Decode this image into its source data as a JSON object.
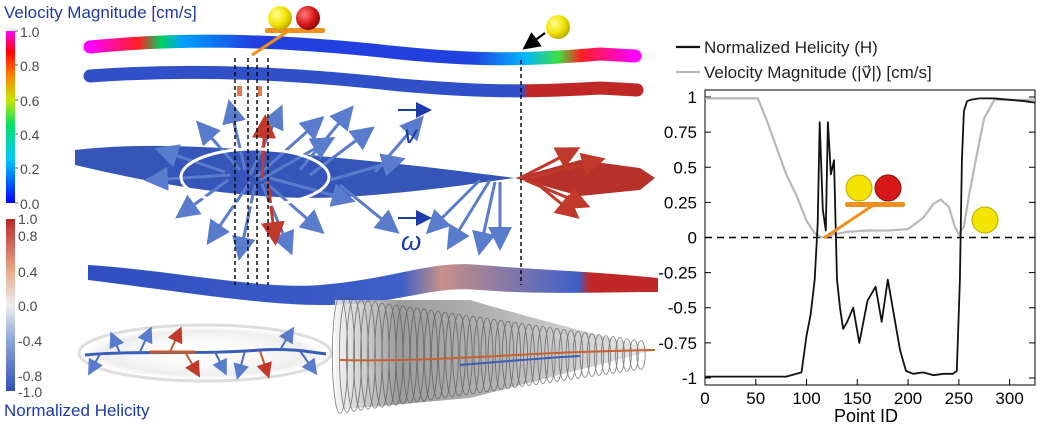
{
  "velocity_colorbar": {
    "title": "Velocity Magnitude [cm/s]",
    "ticks": [
      "1.0",
      "0.8",
      "0.6",
      "0.4",
      "0.2",
      "0.0"
    ]
  },
  "helicity_colorbar": {
    "title": "Normalized Helicity",
    "ticks": [
      "1.0",
      "0.8",
      "0.4",
      "0.0",
      "-0.4",
      "-0.8",
      "-1.0"
    ]
  },
  "field_labels": {
    "velocity_symbol": "v",
    "vorticity_symbol": "ω"
  },
  "colors": {
    "helicity_line": "#111111",
    "velocity_line": "#b8b8b8",
    "vector_blue": "#3b5bbf",
    "vector_red": "#c0392b",
    "label_blue": "#1c3aa8",
    "sphere_yellow": "#f2e300",
    "sphere_red": "#d81818",
    "seesaw_orange": "#f0901c"
  },
  "chart_data": {
    "type": "line",
    "xlabel": "Point ID",
    "ylabel": "",
    "xlim": [
      0,
      325
    ],
    "ylim": [
      -1.05,
      1.05
    ],
    "xticks": [
      0,
      50,
      100,
      150,
      200,
      250,
      300
    ],
    "yticks": [
      1,
      0.75,
      0.5,
      0.25,
      0,
      -0.25,
      -0.5,
      -0.75,
      -1
    ],
    "ytick_labels": [
      "1",
      "0.75",
      "0.5",
      "0.25",
      "0",
      "-0.25",
      "-0.5",
      "-0.75",
      "-1"
    ],
    "legend_position": "top",
    "reference_line": {
      "y": 0,
      "style": "dashed"
    },
    "series": [
      {
        "name": "Normalized Helicity (H)",
        "x": [
          0,
          40,
          80,
          95,
          100,
          104,
          108,
          111,
          113,
          116,
          119,
          121,
          124,
          127,
          130,
          133,
          136,
          140,
          146,
          152,
          160,
          168,
          174,
          180,
          186,
          192,
          198,
          205,
          215,
          225,
          235,
          244,
          248,
          251,
          253,
          255,
          258,
          262,
          270,
          285,
          300,
          315,
          325
        ],
        "y": [
          -0.99,
          -0.99,
          -0.99,
          -0.96,
          -0.7,
          -0.55,
          -0.3,
          0.1,
          0.82,
          0.2,
          0.05,
          0.82,
          0.45,
          0.55,
          -0.3,
          -0.5,
          -0.65,
          -0.6,
          -0.5,
          -0.75,
          -0.45,
          -0.35,
          -0.6,
          -0.3,
          -0.55,
          -0.8,
          -0.95,
          -0.97,
          -0.96,
          -0.98,
          -0.97,
          -0.97,
          -0.95,
          -0.3,
          0.55,
          0.9,
          0.97,
          0.98,
          0.99,
          0.99,
          0.98,
          0.97,
          0.96
        ]
      },
      {
        "name": "Velocity Magnitude (|v⃗|) [cm/s]",
        "x": [
          0,
          20,
          40,
          52,
          60,
          70,
          80,
          90,
          100,
          108,
          115,
          125,
          140,
          160,
          180,
          200,
          215,
          225,
          232,
          240,
          246,
          250,
          255,
          260,
          268,
          275,
          285,
          300,
          325
        ],
        "y": [
          0.99,
          0.99,
          0.99,
          0.99,
          0.85,
          0.65,
          0.45,
          0.3,
          0.12,
          0.03,
          0.0,
          0.02,
          0.04,
          0.05,
          0.05,
          0.06,
          0.14,
          0.24,
          0.27,
          0.22,
          0.08,
          0.02,
          0.08,
          0.3,
          0.6,
          0.85,
          0.98,
          0.98,
          0.98
        ]
      }
    ]
  }
}
